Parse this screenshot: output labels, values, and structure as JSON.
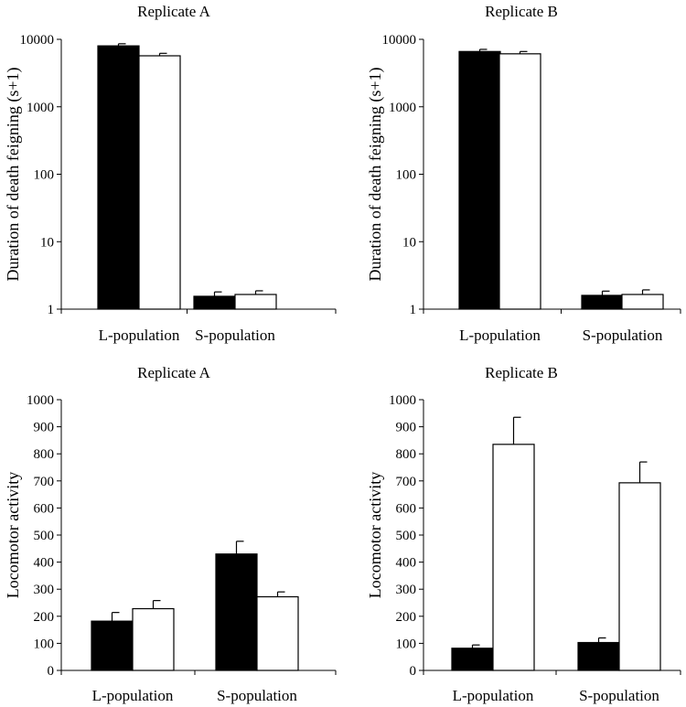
{
  "chart_data": [
    {
      "type": "bar",
      "title": "Replicate A",
      "ylabel": "Duration of death feigning (s+1)",
      "xlabel": "",
      "yscale": "log",
      "ylim": [
        1,
        10000
      ],
      "yticks": [
        1,
        10,
        100,
        1000,
        10000
      ],
      "categories": [
        "L-population",
        "S-population"
      ],
      "series": [
        {
          "name": "filled",
          "color": "#000000",
          "values": [
            8000,
            1.55
          ],
          "errors": [
            600,
            0.25
          ]
        },
        {
          "name": "open",
          "color": "#ffffff",
          "values": [
            5700,
            1.65
          ],
          "errors": [
            500,
            0.22
          ]
        }
      ]
    },
    {
      "type": "bar",
      "title": "Replicate B",
      "ylabel": "Duration of death feigning (s+1)",
      "xlabel": "",
      "yscale": "log",
      "ylim": [
        1,
        10000
      ],
      "yticks": [
        1,
        10,
        100,
        1000,
        10000
      ],
      "categories": [
        "L-population",
        "S-population"
      ],
      "series": [
        {
          "name": "filled",
          "color": "#000000",
          "values": [
            6600,
            1.6
          ],
          "errors": [
            500,
            0.25
          ]
        },
        {
          "name": "open",
          "color": "#ffffff",
          "values": [
            6100,
            1.65
          ],
          "errors": [
            500,
            0.28
          ]
        }
      ]
    },
    {
      "type": "bar",
      "title": "Replicate A",
      "ylabel": "Locomotor activity",
      "xlabel": "",
      "yscale": "linear",
      "ylim": [
        0,
        1000
      ],
      "yticks": [
        0,
        100,
        200,
        300,
        400,
        500,
        600,
        700,
        800,
        900,
        1000
      ],
      "categories": [
        "L-population",
        "S-population"
      ],
      "series": [
        {
          "name": "filled",
          "color": "#000000",
          "values": [
            182,
            430
          ],
          "errors": [
            32,
            47
          ]
        },
        {
          "name": "open",
          "color": "#ffffff",
          "values": [
            228,
            272
          ],
          "errors": [
            30,
            18
          ]
        }
      ]
    },
    {
      "type": "bar",
      "title": "Replicate B",
      "ylabel": "Locomotor activity",
      "xlabel": "",
      "yscale": "linear",
      "ylim": [
        0,
        1000
      ],
      "yticks": [
        0,
        100,
        200,
        300,
        400,
        500,
        600,
        700,
        800,
        900,
        1000
      ],
      "categories": [
        "L-population",
        "S-population"
      ],
      "series": [
        {
          "name": "filled",
          "color": "#000000",
          "values": [
            82,
            103
          ],
          "errors": [
            12,
            17
          ]
        },
        {
          "name": "open",
          "color": "#ffffff",
          "values": [
            835,
            693
          ],
          "errors": [
            100,
            77
          ]
        }
      ]
    }
  ]
}
